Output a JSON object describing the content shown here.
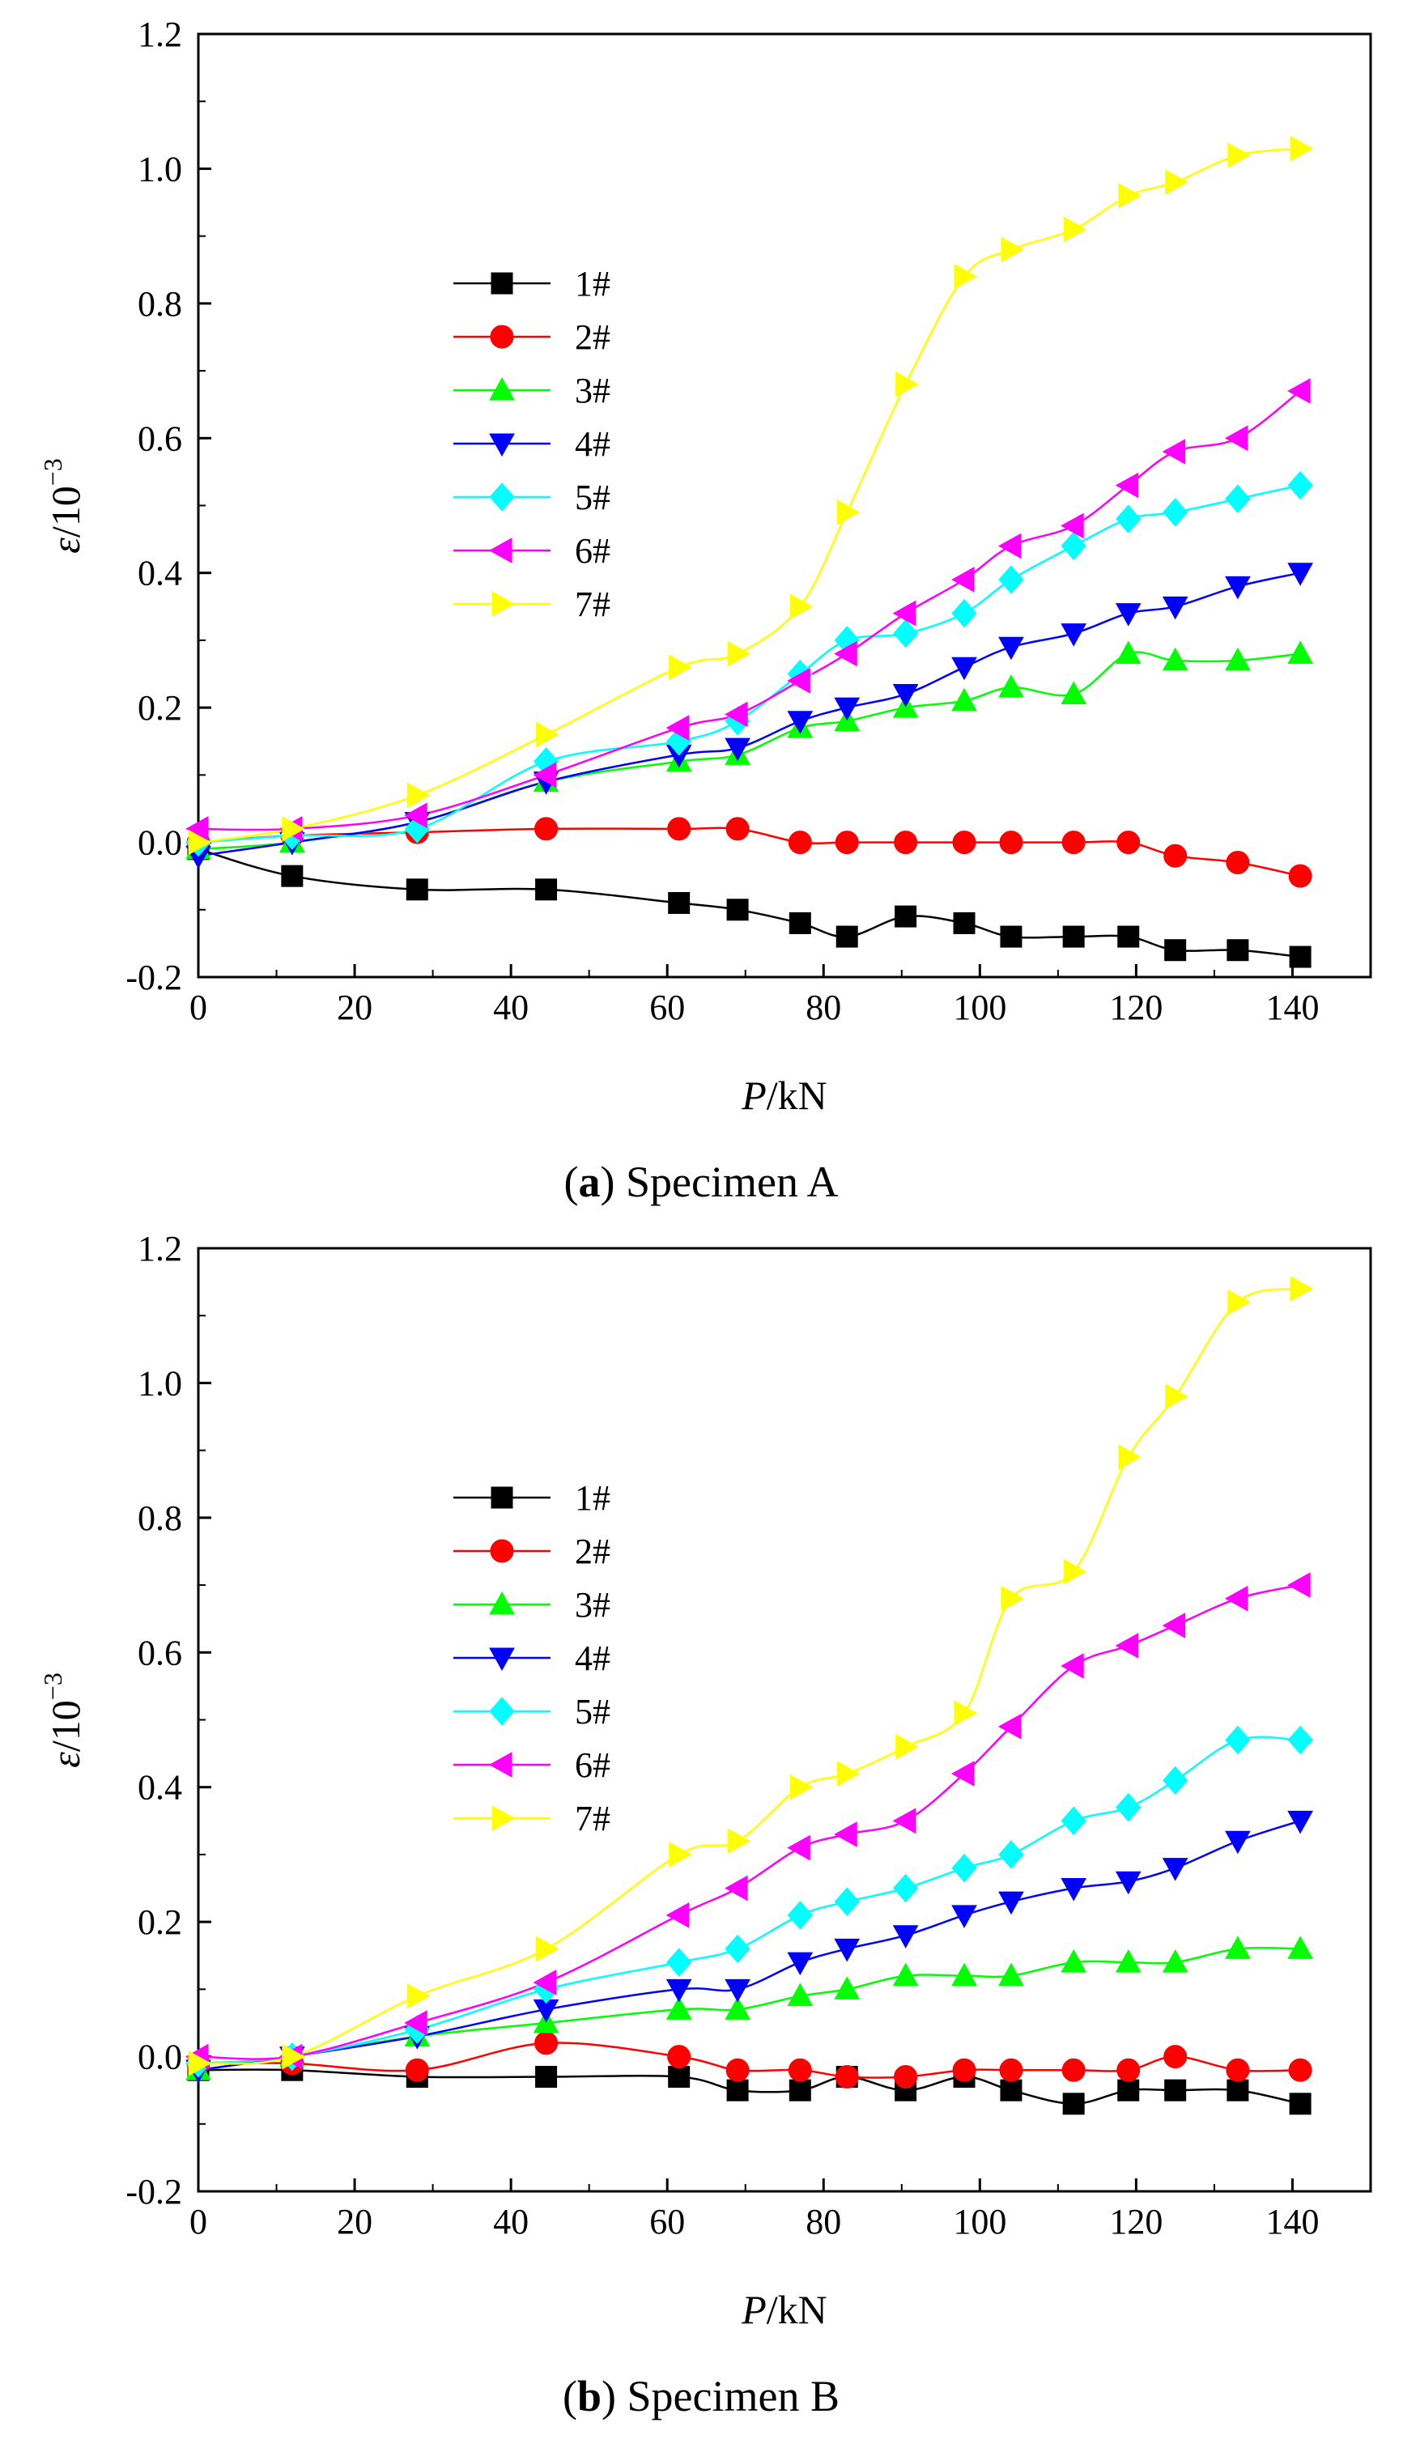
{
  "chart_data": [
    {
      "type": "line",
      "caption_label": "a",
      "caption_text": " Specimen A",
      "xlabel_symbol": "P",
      "xlabel_unit": "/kN",
      "ylabel_symbol": "ε",
      "ylabel_unit": "/10",
      "ylabel_exp": "−3",
      "xlim": [
        0,
        150
      ],
      "ylim": [
        -0.2,
        1.2
      ],
      "xticks": [
        0,
        20,
        40,
        60,
        80,
        100,
        120,
        140
      ],
      "xtick_labels": [
        "0",
        "20",
        "40",
        "60",
        "80",
        "100",
        "120",
        "140"
      ],
      "yticks": [
        -0.2,
        0,
        0.2,
        0.4,
        0.6,
        0.8,
        1.0,
        1.2
      ],
      "ytick_labels": [
        "-0.2",
        "0.0",
        "0.2",
        "0.4",
        "0.6",
        "0.8",
        "1.0",
        "1.2"
      ],
      "x": [
        0,
        12,
        28,
        44.5,
        61.5,
        69,
        77,
        83,
        90.5,
        98,
        104,
        112,
        119,
        125,
        133,
        141
      ],
      "series": [
        {
          "name": "1#",
          "color": "#000000",
          "marker": "square",
          "values": [
            -0.01,
            -0.05,
            -0.07,
            -0.07,
            -0.09,
            -0.1,
            -0.12,
            -0.14,
            -0.11,
            -0.12,
            -0.14,
            -0.14,
            -0.14,
            -0.16,
            -0.16,
            -0.17
          ]
        },
        {
          "name": "2#",
          "color": "#ff0000",
          "marker": "circle",
          "values": [
            0.0,
            0.01,
            0.015,
            0.02,
            0.02,
            0.02,
            0.0,
            0.0,
            0.0,
            0.0,
            0.0,
            0.0,
            0.0,
            -0.02,
            -0.03,
            -0.05
          ]
        },
        {
          "name": "3#",
          "color": "#00ff00",
          "marker": "triangle-up",
          "values": [
            -0.01,
            0.0,
            0.03,
            0.09,
            0.12,
            0.13,
            0.17,
            0.18,
            0.2,
            0.21,
            0.23,
            0.22,
            0.28,
            0.27,
            0.27,
            0.28
          ]
        },
        {
          "name": "4#",
          "color": "#0000ff",
          "marker": "triangle-down",
          "values": [
            -0.02,
            0.0,
            0.03,
            0.09,
            0.13,
            0.14,
            0.18,
            0.2,
            0.22,
            0.26,
            0.29,
            0.31,
            0.34,
            0.35,
            0.38,
            0.4
          ]
        },
        {
          "name": "5#",
          "color": "#00ffff",
          "marker": "diamond",
          "values": [
            0.0,
            0.01,
            0.02,
            0.12,
            0.15,
            0.18,
            0.25,
            0.3,
            0.31,
            0.34,
            0.39,
            0.44,
            0.48,
            0.49,
            0.51,
            0.53
          ]
        },
        {
          "name": "6#",
          "color": "#ff00ff",
          "marker": "triangle-left",
          "values": [
            0.02,
            0.02,
            0.04,
            0.1,
            0.17,
            0.19,
            0.24,
            0.28,
            0.34,
            0.39,
            0.44,
            0.47,
            0.53,
            0.58,
            0.6,
            0.67
          ]
        },
        {
          "name": "7#",
          "color": "#ffff00",
          "marker": "triangle-right",
          "values": [
            0.0,
            0.02,
            0.07,
            0.16,
            0.26,
            0.28,
            0.35,
            0.49,
            0.68,
            0.84,
            0.88,
            0.91,
            0.96,
            0.98,
            1.02,
            1.03
          ]
        }
      ]
    },
    {
      "type": "line",
      "caption_label": "b",
      "caption_text": " Specimen B",
      "xlabel_symbol": "P",
      "xlabel_unit": "/kN",
      "ylabel_symbol": "ε",
      "ylabel_unit": "/10",
      "ylabel_exp": "−3",
      "xlim": [
        0,
        150
      ],
      "ylim": [
        -0.2,
        1.2
      ],
      "xticks": [
        0,
        20,
        40,
        60,
        80,
        100,
        120,
        140
      ],
      "xtick_labels": [
        "0",
        "20",
        "40",
        "60",
        "80",
        "100",
        "120",
        "140"
      ],
      "yticks": [
        -0.2,
        0,
        0.2,
        0.4,
        0.6,
        0.8,
        1.0,
        1.2
      ],
      "ytick_labels": [
        "-0.2",
        "0.0",
        "0.2",
        "0.4",
        "0.6",
        "0.8",
        "1.0",
        "1.2"
      ],
      "x": [
        0,
        12,
        28,
        44.5,
        61.5,
        69,
        77,
        83,
        90.5,
        98,
        104,
        112,
        119,
        125,
        133,
        141
      ],
      "series": [
        {
          "name": "1#",
          "color": "#000000",
          "marker": "square",
          "values": [
            -0.02,
            -0.02,
            -0.03,
            -0.03,
            -0.03,
            -0.05,
            -0.05,
            -0.03,
            -0.05,
            -0.03,
            -0.05,
            -0.07,
            -0.05,
            -0.05,
            -0.05,
            -0.07
          ]
        },
        {
          "name": "2#",
          "color": "#ff0000",
          "marker": "circle",
          "values": [
            -0.01,
            -0.01,
            -0.02,
            0.02,
            0.0,
            -0.02,
            -0.02,
            -0.03,
            -0.03,
            -0.02,
            -0.02,
            -0.02,
            -0.02,
            0.0,
            -0.02,
            -0.02
          ]
        },
        {
          "name": "3#",
          "color": "#00ff00",
          "marker": "triangle-up",
          "values": [
            -0.02,
            0.0,
            0.03,
            0.05,
            0.07,
            0.07,
            0.09,
            0.1,
            0.12,
            0.12,
            0.12,
            0.14,
            0.14,
            0.14,
            0.16,
            0.16
          ]
        },
        {
          "name": "4#",
          "color": "#0000ff",
          "marker": "triangle-down",
          "values": [
            -0.02,
            0.0,
            0.03,
            0.07,
            0.1,
            0.1,
            0.14,
            0.16,
            0.18,
            0.21,
            0.23,
            0.25,
            0.26,
            0.28,
            0.32,
            0.35
          ]
        },
        {
          "name": "5#",
          "color": "#00ffff",
          "marker": "diamond",
          "values": [
            -0.01,
            0.0,
            0.04,
            0.1,
            0.14,
            0.16,
            0.21,
            0.23,
            0.25,
            0.28,
            0.3,
            0.35,
            0.37,
            0.41,
            0.47,
            0.47
          ]
        },
        {
          "name": "6#",
          "color": "#ff00ff",
          "marker": "triangle-left",
          "values": [
            0.0,
            0.0,
            0.05,
            0.11,
            0.21,
            0.25,
            0.31,
            0.33,
            0.35,
            0.42,
            0.49,
            0.58,
            0.61,
            0.64,
            0.68,
            0.7
          ]
        },
        {
          "name": "7#",
          "color": "#ffff00",
          "marker": "triangle-right",
          "values": [
            -0.01,
            0.0,
            0.09,
            0.16,
            0.3,
            0.32,
            0.4,
            0.42,
            0.46,
            0.51,
            0.68,
            0.72,
            0.89,
            0.98,
            1.12,
            1.14
          ]
        }
      ]
    }
  ]
}
